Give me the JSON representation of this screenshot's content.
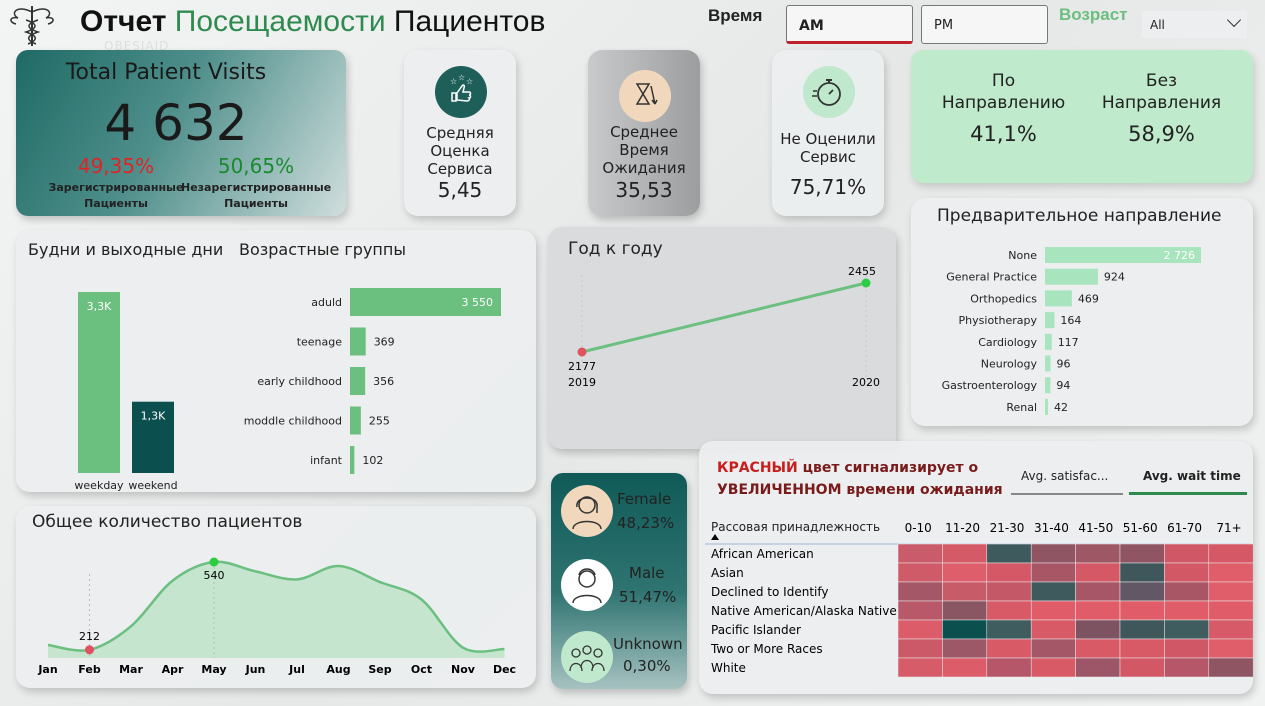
{
  "header": {
    "title_part1": "Отчет",
    "title_part2": "Посещаемости",
    "title_part3": "Пациентов",
    "time_label": "Время",
    "time_buttons": [
      "AM",
      "PM"
    ],
    "age_label": "Возраст",
    "age_select_value": "All",
    "logo_watermark": "OBESIAID"
  },
  "colors": {
    "primary": "#1f5f5a",
    "green": "#6bbf7f",
    "light_green": "#a8e4bd",
    "red": "#e0525e",
    "dark_teal": "#0c4f4f"
  },
  "total_visits": {
    "title": "Total Patient Visits",
    "value": "4 632",
    "registered_pct": "49,35%",
    "registered_label": "Зарегистрированные Пациенты",
    "unregistered_pct": "50,65%",
    "unregistered_label": "Незарегистрированные Пациенты"
  },
  "kpis": [
    {
      "label": "Средняя Оценка Сервиса",
      "value": "5,45",
      "icon": "thumbs-up-stars-icon"
    },
    {
      "label": "Среднее Время Ожидания",
      "value": "35,53",
      "icon": "hourglass-arrow-icon"
    },
    {
      "label": "Не Оценили Сервис",
      "value": "75,71%",
      "icon": "stopwatch-icon"
    }
  ],
  "referral_split": {
    "with_label": "По Направлению",
    "with_value": "41,1%",
    "without_label": "Без Направления",
    "without_value": "58,9%"
  },
  "weekday_chart": {
    "title": "Будни и выходные дни",
    "categories": [
      "weekday",
      "weekend"
    ],
    "values": [
      3300,
      1300
    ],
    "labels": [
      "3,3K",
      "1,3K"
    ]
  },
  "age_chart": {
    "title": "Возрастные группы",
    "categories": [
      "aduld",
      "teenage",
      "early childhood",
      "moddle childhood",
      "infant"
    ],
    "values": [
      3550,
      369,
      356,
      255,
      102
    ],
    "labels": [
      "3 550",
      "369",
      "356",
      "255",
      "102"
    ]
  },
  "yoy_chart": {
    "title": "Год к году",
    "points": [
      {
        "x": "2019",
        "y": 2177,
        "label": "2177"
      },
      {
        "x": "2020",
        "y": 2455,
        "label": "2455"
      }
    ]
  },
  "referral_chart": {
    "title": "Предварительное направление",
    "categories": [
      "None",
      "General Practice",
      "Orthopedics",
      "Physiotherapy",
      "Cardiology",
      "Neurology",
      "Gastroenterology",
      "Renal"
    ],
    "values": [
      2726,
      924,
      469,
      164,
      117,
      96,
      94,
      42
    ],
    "labels": [
      "2 726",
      "924",
      "469",
      "164",
      "117",
      "96",
      "94",
      "42"
    ]
  },
  "monthly_chart": {
    "title": "Общее количество пациентов",
    "months": [
      "Jan",
      "Feb",
      "Mar",
      "Apr",
      "May",
      "Jun",
      "Jul",
      "Aug",
      "Sep",
      "Oct",
      "Nov",
      "Dec"
    ],
    "values": [
      230,
      212,
      300,
      470,
      540,
      505,
      475,
      525,
      465,
      400,
      220,
      215
    ],
    "min_label": "212",
    "max_label": "540"
  },
  "gender": [
    {
      "label": "Female",
      "value": "48,23%",
      "icon": "female-avatar-icon"
    },
    {
      "label": "Male",
      "value": "51,47%",
      "icon": "male-avatar-icon"
    },
    {
      "label": "Unknown",
      "value": "0,30%",
      "icon": "group-icon"
    }
  ],
  "heatmap": {
    "note_red": "КРАСНЫЙ",
    "note_rest": "цвет сигнализирует о УВЕЛИЧЕННОМ времени ожидания",
    "tabs": [
      "Avg. satisfac...",
      "Avg. wait time"
    ],
    "row_header": "Рассовая принадлежность",
    "columns": [
      "0-10",
      "11-20",
      "21-30",
      "31-40",
      "41-50",
      "51-60",
      "61-70",
      "71+"
    ],
    "rows": [
      "African American",
      "Asian",
      "Declined to Identify",
      "Native American/Alaska Native",
      "Pacific Islander",
      "Two or More Races",
      "White"
    ],
    "cells": [
      [
        "#c95b6a",
        "#d55a67",
        "#3e5a5c",
        "#8f5563",
        "#9e5765",
        "#8f5563",
        "#d05866",
        "#d45866"
      ],
      [
        "#cf5b68",
        "#de5e6b",
        "#d45866",
        "#a85665",
        "#d55866",
        "#3f575a",
        "#d35866",
        "#e05e69"
      ],
      [
        "#a35767",
        "#c85b68",
        "#c45866",
        "#3e5a5c",
        "#a65667",
        "#625764",
        "#a85665",
        "#e05e69"
      ],
      [
        "#b85868",
        "#8b5664",
        "#d85a67",
        "#e05c68",
        "#e05c68",
        "#e05c68",
        "#e05c68",
        "#e05c68"
      ],
      [
        "#dc5c69",
        "#0c4f4f",
        "#3f5c5e",
        "#d85a67",
        "#7d5261",
        "#3f575a",
        "#3f5c5e",
        "#d65a67"
      ],
      [
        "#cb5a68",
        "#9c5867",
        "#d85a67",
        "#a35767",
        "#d85a67",
        "#d85a67",
        "#d05866",
        "#e05e69"
      ],
      [
        "#d65c69",
        "#dc5c69",
        "#b55768",
        "#d85a67",
        "#9c5667",
        "#d35866",
        "#b55768",
        "#8f5563"
      ]
    ]
  }
}
